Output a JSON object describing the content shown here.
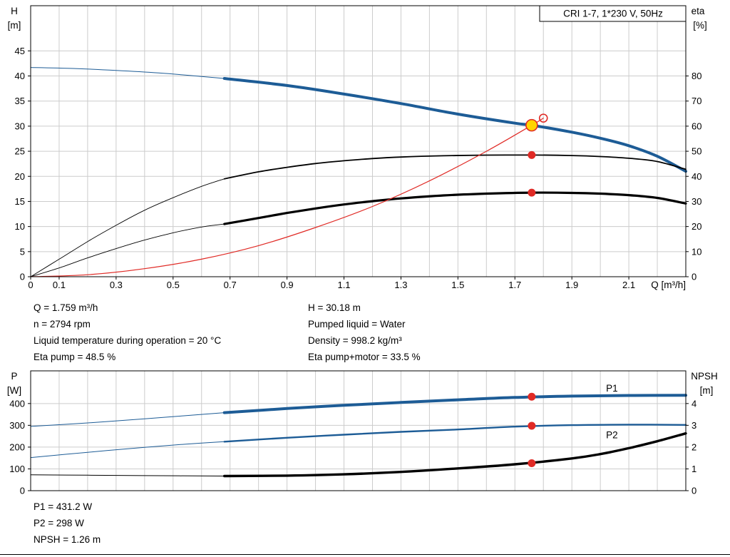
{
  "colors": {
    "blue": "#1d5c96",
    "black": "#000000",
    "red": "#e02a25",
    "yellow": "#ffd400",
    "grid": "#cccccc"
  },
  "info_top": {
    "left": [
      "Q = 1.759 m³/h",
      "n = 2794 rpm",
      "Liquid temperature during operation = 20 °C",
      "Eta pump = 48.5 %"
    ],
    "right": [
      "H = 30.18 m",
      "Pumped liquid = Water",
      "Density = 998.2 kg/m³",
      "Eta pump+motor = 33.5 %"
    ]
  },
  "info_bottom": [
    "P1 = 431.2 W",
    "P2 = 298 W",
    "NPSH = 1.26 m"
  ],
  "chart_data": [
    {
      "type": "line",
      "title_box": "CRI 1-7, 1*230 V, 50Hz",
      "x_axis": {
        "label": "Q [m³/h]",
        "min": 0,
        "max": 2.3,
        "grid_step": 0.1,
        "tick_labels": [
          0,
          0.1,
          0.3,
          0.5,
          0.7,
          0.9,
          1.1,
          1.3,
          1.5,
          1.7,
          1.9,
          2.1
        ]
      },
      "left_axis": {
        "label": "H",
        "unit": "[m]",
        "min": 0,
        "max": 54,
        "ticks": [
          0,
          5,
          10,
          15,
          20,
          25,
          30,
          35,
          40,
          45
        ]
      },
      "right_axis": {
        "label": "eta",
        "unit": "[%]",
        "min": 0,
        "max": 108,
        "ticks": [
          0,
          10,
          20,
          30,
          40,
          50,
          60,
          70,
          80
        ]
      },
      "series": [
        {
          "name": "head-curve-lead",
          "axis": "left",
          "color": "blue",
          "width": 1,
          "points": [
            [
              0,
              41.7
            ],
            [
              0.15,
              41.5
            ],
            [
              0.3,
              41.1
            ],
            [
              0.45,
              40.6
            ],
            [
              0.6,
              39.9
            ],
            [
              0.68,
              39.5
            ]
          ]
        },
        {
          "name": "head-curve",
          "axis": "left",
          "color": "blue",
          "width": 4,
          "points": [
            [
              0.68,
              39.5
            ],
            [
              0.9,
              38.1
            ],
            [
              1.1,
              36.4
            ],
            [
              1.3,
              34.5
            ],
            [
              1.5,
              32.4
            ],
            [
              1.7,
              30.6
            ],
            [
              1.759,
              30.18
            ],
            [
              1.9,
              28.8
            ],
            [
              2.0,
              27.6
            ],
            [
              2.1,
              26.1
            ],
            [
              2.2,
              24.0
            ],
            [
              2.3,
              21.0
            ]
          ]
        },
        {
          "name": "eta-pump-lead",
          "axis": "right",
          "color": "black",
          "width": 0.9,
          "points": [
            [
              0,
              0
            ],
            [
              0.1,
              7
            ],
            [
              0.2,
              14
            ],
            [
              0.3,
              20.5
            ],
            [
              0.4,
              26.5
            ],
            [
              0.5,
              31.5
            ],
            [
              0.6,
              36
            ],
            [
              0.68,
              39
            ]
          ]
        },
        {
          "name": "eta-pump-curve",
          "axis": "right",
          "color": "black",
          "width": 1.8,
          "points": [
            [
              0.68,
              39
            ],
            [
              0.8,
              41.8
            ],
            [
              0.9,
              43.6
            ],
            [
              1.0,
              45.1
            ],
            [
              1.1,
              46.2
            ],
            [
              1.2,
              47.1
            ],
            [
              1.3,
              47.7
            ],
            [
              1.45,
              48.2
            ],
            [
              1.6,
              48.45
            ],
            [
              1.759,
              48.5
            ],
            [
              1.9,
              48.3
            ],
            [
              2.0,
              47.9
            ],
            [
              2.1,
              47.2
            ],
            [
              2.2,
              45.9
            ],
            [
              2.3,
              42.8
            ]
          ]
        },
        {
          "name": "eta-pump-motor-lead",
          "axis": "right",
          "color": "black",
          "width": 0.9,
          "points": [
            [
              0,
              0
            ],
            [
              0.1,
              3.5
            ],
            [
              0.2,
              7.5
            ],
            [
              0.3,
              11.2
            ],
            [
              0.4,
              14.6
            ],
            [
              0.5,
              17.5
            ],
            [
              0.6,
              19.8
            ],
            [
              0.68,
              21
            ]
          ]
        },
        {
          "name": "eta-pump-motor-curve",
          "axis": "right",
          "color": "black",
          "width": 3.2,
          "points": [
            [
              0.68,
              21
            ],
            [
              0.8,
              23.4
            ],
            [
              0.9,
              25.4
            ],
            [
              1.0,
              27.2
            ],
            [
              1.1,
              28.8
            ],
            [
              1.2,
              30.1
            ],
            [
              1.3,
              31.2
            ],
            [
              1.45,
              32.4
            ],
            [
              1.6,
              33.1
            ],
            [
              1.759,
              33.5
            ],
            [
              1.9,
              33.4
            ],
            [
              2.0,
              33.1
            ],
            [
              2.1,
              32.5
            ],
            [
              2.2,
              31.4
            ],
            [
              2.3,
              29.2
            ]
          ]
        },
        {
          "name": "system-curve",
          "axis": "left",
          "color": "red",
          "width": 1.2,
          "points": [
            [
              0,
              0
            ],
            [
              0.2,
              0.4
            ],
            [
              0.4,
              1.6
            ],
            [
              0.6,
              3.5
            ],
            [
              0.8,
              6.2
            ],
            [
              1.0,
              9.8
            ],
            [
              1.2,
              14.0
            ],
            [
              1.4,
              19.1
            ],
            [
              1.6,
              25.0
            ],
            [
              1.759,
              30.18
            ],
            [
              1.8,
              31.6
            ]
          ]
        }
      ],
      "markers": [
        {
          "name": "eta-pump-point",
          "x": 1.759,
          "y": 48.5,
          "axis": "right",
          "r": 5.5,
          "fill": "red"
        },
        {
          "name": "eta-pump-motor-point",
          "x": 1.759,
          "y": 33.5,
          "axis": "right",
          "r": 5.5,
          "fill": "red"
        },
        {
          "name": "rated-point",
          "x": 1.8,
          "y": 31.6,
          "axis": "left",
          "r": 5.5,
          "fill": "none",
          "stroke": "red",
          "stroke_width": 1.6
        },
        {
          "name": "duty-point",
          "x": 1.759,
          "y": 30.18,
          "axis": "left",
          "r": 8,
          "fill": "yellow",
          "stroke": "red",
          "stroke_width": 1.6
        }
      ],
      "annotations": []
    },
    {
      "type": "line",
      "x_axis": {
        "min": 0,
        "max": 2.3,
        "grid_step": 0.1,
        "tick_labels": []
      },
      "left_axis": {
        "label": "P",
        "unit": "[W]",
        "min": 0,
        "max": 550,
        "ticks": [
          0,
          100,
          200,
          300,
          400
        ]
      },
      "right_axis": {
        "label": "NPSH",
        "unit": "[m]",
        "min": 0,
        "max": 5.5,
        "ticks": [
          0,
          1,
          2,
          3,
          4
        ]
      },
      "series": [
        {
          "name": "p1-curve-lead",
          "axis": "left",
          "color": "blue",
          "width": 1,
          "points": [
            [
              0,
              295
            ],
            [
              0.2,
              311
            ],
            [
              0.4,
              330
            ],
            [
              0.55,
              345
            ],
            [
              0.68,
              358
            ]
          ]
        },
        {
          "name": "p1-curve",
          "axis": "left",
          "color": "blue",
          "width": 4,
          "points": [
            [
              0.68,
              358
            ],
            [
              0.9,
              377
            ],
            [
              1.1,
              392
            ],
            [
              1.3,
              405
            ],
            [
              1.5,
              417
            ],
            [
              1.7,
              428
            ],
            [
              1.9,
              434
            ],
            [
              2.1,
              437
            ],
            [
              2.3,
              438
            ]
          ]
        },
        {
          "name": "p2-curve-lead",
          "axis": "left",
          "color": "blue",
          "width": 1,
          "points": [
            [
              0,
              152
            ],
            [
              0.2,
              176
            ],
            [
              0.4,
              199
            ],
            [
              0.55,
              214
            ],
            [
              0.68,
              225
            ]
          ]
        },
        {
          "name": "p2-curve",
          "axis": "left",
          "color": "blue",
          "width": 2.4,
          "points": [
            [
              0.68,
              225
            ],
            [
              0.9,
              243
            ],
            [
              1.1,
              257
            ],
            [
              1.3,
              270
            ],
            [
              1.5,
              281
            ],
            [
              1.7,
              294
            ],
            [
              1.9,
              301
            ],
            [
              2.1,
              303
            ],
            [
              2.3,
              302
            ]
          ]
        },
        {
          "name": "npsh-curve-lead",
          "axis": "right",
          "color": "black",
          "width": 1,
          "points": [
            [
              0,
              0.73
            ],
            [
              0.2,
              0.71
            ],
            [
              0.4,
              0.69
            ],
            [
              0.68,
              0.67
            ]
          ]
        },
        {
          "name": "npsh-curve",
          "axis": "right",
          "color": "black",
          "width": 3.4,
          "points": [
            [
              0.68,
              0.67
            ],
            [
              0.9,
              0.69
            ],
            [
              1.1,
              0.75
            ],
            [
              1.3,
              0.86
            ],
            [
              1.5,
              1.02
            ],
            [
              1.7,
              1.21
            ],
            [
              1.9,
              1.48
            ],
            [
              2.0,
              1.68
            ],
            [
              2.1,
              1.95
            ],
            [
              2.2,
              2.27
            ],
            [
              2.3,
              2.63
            ]
          ]
        }
      ],
      "markers": [
        {
          "name": "p1-point",
          "x": 1.759,
          "y": 431.2,
          "axis": "left",
          "r": 5.5,
          "fill": "red"
        },
        {
          "name": "p2-point",
          "x": 1.759,
          "y": 298,
          "axis": "left",
          "r": 5.5,
          "fill": "red"
        },
        {
          "name": "npsh-point",
          "x": 1.759,
          "y": 1.26,
          "axis": "right",
          "r": 5.5,
          "fill": "red"
        }
      ],
      "annotations": [
        {
          "text": "P1",
          "x": 2.02,
          "y": 455,
          "axis": "left",
          "color": "blue"
        },
        {
          "text": "P2",
          "x": 2.02,
          "y": 240,
          "axis": "left",
          "color": "blue"
        }
      ]
    }
  ]
}
